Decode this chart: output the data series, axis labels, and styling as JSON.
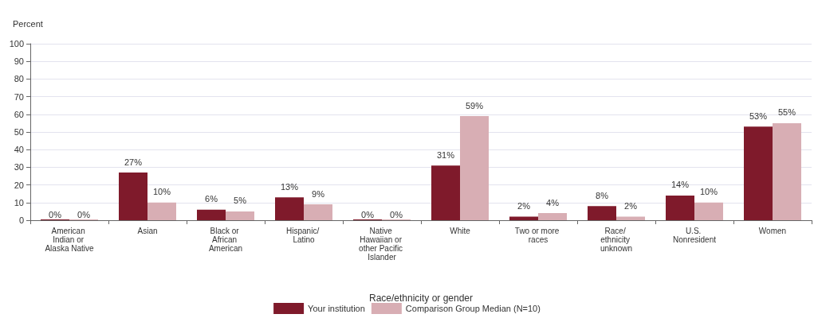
{
  "chart_data": {
    "type": "bar",
    "ylabel": "Percent",
    "xlabel": "Race/ethnicity or gender",
    "categories": [
      "American Indian or Alaska Native",
      "Asian",
      "Black or African American",
      "Hispanic/ Latino",
      "Native Hawaiian or other Pacific Islander",
      "White",
      "Two or more races",
      "Race/ ethnicity unknown",
      "U.S. Nonresident",
      "Women"
    ],
    "series": [
      {
        "name": "Your institution",
        "color": "#7f1a2b",
        "values": [
          0,
          27,
          6,
          13,
          0,
          31,
          2,
          8,
          14,
          53
        ],
        "value_labels": [
          "0%",
          "27%",
          "6%",
          "13%",
          "0%",
          "31%",
          "2%",
          "8%",
          "14%",
          "53%"
        ]
      },
      {
        "name": "Comparison Group Median (N=10)",
        "color": "#d8aeb4",
        "values": [
          0,
          10,
          5,
          9,
          0,
          59,
          4,
          2,
          10,
          55
        ],
        "value_labels": [
          "0%",
          "10%",
          "5%",
          "9%",
          "0%",
          "59%",
          "4%",
          "2%",
          "10%",
          "55%"
        ]
      }
    ],
    "ylim": [
      0,
      100
    ],
    "yticks": [
      0,
      10,
      20,
      30,
      40,
      50,
      60,
      70,
      80,
      90,
      100
    ],
    "grid": "y",
    "legend": "bottom"
  }
}
